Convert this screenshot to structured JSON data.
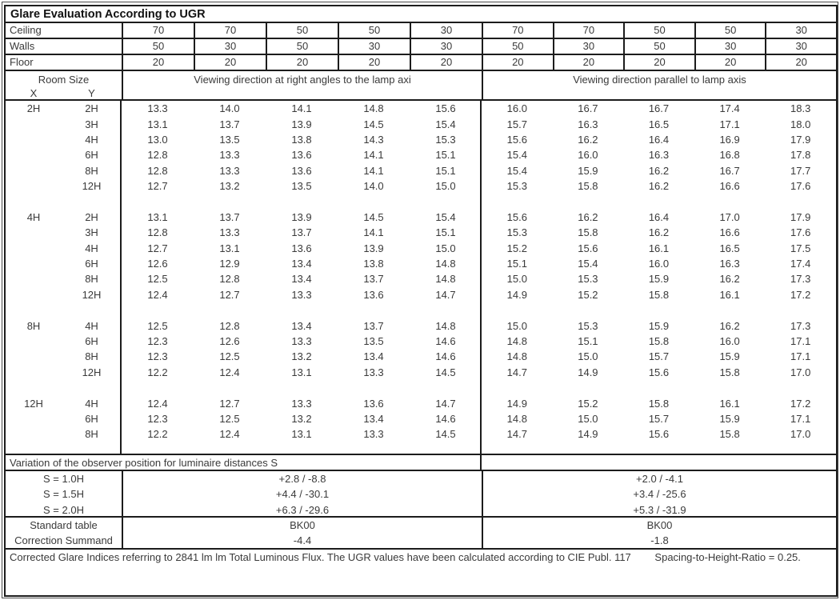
{
  "title": "Glare Evaluation According to UGR",
  "surface_rows": [
    {
      "label": "Ceiling",
      "values": [
        "70",
        "70",
        "50",
        "50",
        "30",
        "70",
        "70",
        "50",
        "50",
        "30"
      ]
    },
    {
      "label": "Walls",
      "values": [
        "50",
        "30",
        "50",
        "30",
        "30",
        "50",
        "30",
        "50",
        "30",
        "30"
      ]
    },
    {
      "label": "Floor",
      "values": [
        "20",
        "20",
        "20",
        "20",
        "20",
        "20",
        "20",
        "20",
        "20",
        "20"
      ]
    }
  ],
  "header": {
    "room_size": "Room Size",
    "x_label": "X",
    "y_label": "Y",
    "left_section": "Viewing direction at right angles to the lamp axi",
    "right_section": "Viewing direction parallel to lamp axis"
  },
  "room_blocks": [
    {
      "x": "2H",
      "rows": [
        {
          "y": "2H",
          "values": [
            "13.3",
            "14.0",
            "14.1",
            "14.8",
            "15.6",
            "16.0",
            "16.7",
            "16.7",
            "17.4",
            "18.3"
          ]
        },
        {
          "y": "3H",
          "values": [
            "13.1",
            "13.7",
            "13.9",
            "14.5",
            "15.4",
            "15.7",
            "16.3",
            "16.5",
            "17.1",
            "18.0"
          ]
        },
        {
          "y": "4H",
          "values": [
            "13.0",
            "13.5",
            "13.8",
            "14.3",
            "15.3",
            "15.6",
            "16.2",
            "16.4",
            "16.9",
            "17.9"
          ]
        },
        {
          "y": "6H",
          "values": [
            "12.8",
            "13.3",
            "13.6",
            "14.1",
            "15.1",
            "15.4",
            "16.0",
            "16.3",
            "16.8",
            "17.8"
          ]
        },
        {
          "y": "8H",
          "values": [
            "12.8",
            "13.3",
            "13.6",
            "14.1",
            "15.1",
            "15.4",
            "15.9",
            "16.2",
            "16.7",
            "17.7"
          ]
        },
        {
          "y": "12H",
          "values": [
            "12.7",
            "13.2",
            "13.5",
            "14.0",
            "15.0",
            "15.3",
            "15.8",
            "16.2",
            "16.6",
            "17.6"
          ]
        }
      ]
    },
    {
      "x": "4H",
      "rows": [
        {
          "y": "2H",
          "values": [
            "13.1",
            "13.7",
            "13.9",
            "14.5",
            "15.4",
            "15.6",
            "16.2",
            "16.4",
            "17.0",
            "17.9"
          ]
        },
        {
          "y": "3H",
          "values": [
            "12.8",
            "13.3",
            "13.7",
            "14.1",
            "15.1",
            "15.3",
            "15.8",
            "16.2",
            "16.6",
            "17.6"
          ]
        },
        {
          "y": "4H",
          "values": [
            "12.7",
            "13.1",
            "13.6",
            "13.9",
            "15.0",
            "15.2",
            "15.6",
            "16.1",
            "16.5",
            "17.5"
          ]
        },
        {
          "y": "6H",
          "values": [
            "12.6",
            "12.9",
            "13.4",
            "13.8",
            "14.8",
            "15.1",
            "15.4",
            "16.0",
            "16.3",
            "17.4"
          ]
        },
        {
          "y": "8H",
          "values": [
            "12.5",
            "12.8",
            "13.4",
            "13.7",
            "14.8",
            "15.0",
            "15.3",
            "15.9",
            "16.2",
            "17.3"
          ]
        },
        {
          "y": "12H",
          "values": [
            "12.4",
            "12.7",
            "13.3",
            "13.6",
            "14.7",
            "14.9",
            "15.2",
            "15.8",
            "16.1",
            "17.2"
          ]
        }
      ]
    },
    {
      "x": "8H",
      "rows": [
        {
          "y": "4H",
          "values": [
            "12.5",
            "12.8",
            "13.4",
            "13.7",
            "14.8",
            "15.0",
            "15.3",
            "15.9",
            "16.2",
            "17.3"
          ]
        },
        {
          "y": "6H",
          "values": [
            "12.3",
            "12.6",
            "13.3",
            "13.5",
            "14.6",
            "14.8",
            "15.1",
            "15.8",
            "16.0",
            "17.1"
          ]
        },
        {
          "y": "8H",
          "values": [
            "12.3",
            "12.5",
            "13.2",
            "13.4",
            "14.6",
            "14.8",
            "15.0",
            "15.7",
            "15.9",
            "17.1"
          ]
        },
        {
          "y": "12H",
          "values": [
            "12.2",
            "12.4",
            "13.1",
            "13.3",
            "14.5",
            "14.7",
            "14.9",
            "15.6",
            "15.8",
            "17.0"
          ]
        }
      ]
    },
    {
      "x": "12H",
      "rows": [
        {
          "y": "4H",
          "values": [
            "12.4",
            "12.7",
            "13.3",
            "13.6",
            "14.7",
            "14.9",
            "15.2",
            "15.8",
            "16.1",
            "17.2"
          ]
        },
        {
          "y": "6H",
          "values": [
            "12.3",
            "12.5",
            "13.2",
            "13.4",
            "14.6",
            "14.8",
            "15.0",
            "15.7",
            "15.9",
            "17.1"
          ]
        },
        {
          "y": "8H",
          "values": [
            "12.2",
            "12.4",
            "13.1",
            "13.3",
            "14.5",
            "14.7",
            "14.9",
            "15.6",
            "15.8",
            "17.0"
          ]
        }
      ]
    }
  ],
  "variation": {
    "heading": "Variation of the observer position for luminaire distances S",
    "rows": [
      {
        "label": "S = 1.0H",
        "left": "+2.8 / -8.8",
        "right": "+2.0 / -4.1"
      },
      {
        "label": "S = 1.5H",
        "left": "+4.4 / -30.1",
        "right": "+3.4 / -25.6"
      },
      {
        "label": "S = 2.0H",
        "left": "+6.3 / -29.6",
        "right": "+5.3 / -31.9"
      }
    ]
  },
  "summary_rows": [
    {
      "label": "Standard table",
      "left": "BK00",
      "right": "BK00"
    },
    {
      "label": "Correction Summand",
      "left": "-4.4",
      "right": "-1.8"
    }
  ],
  "footer": {
    "note": "Corrected Glare Indices referring to 2841 lm lm Total Luminous Flux. The UGR values have been calculated according to CIE Publ. 117",
    "ratio": "Spacing-to-Height-Ratio = 0.25."
  }
}
